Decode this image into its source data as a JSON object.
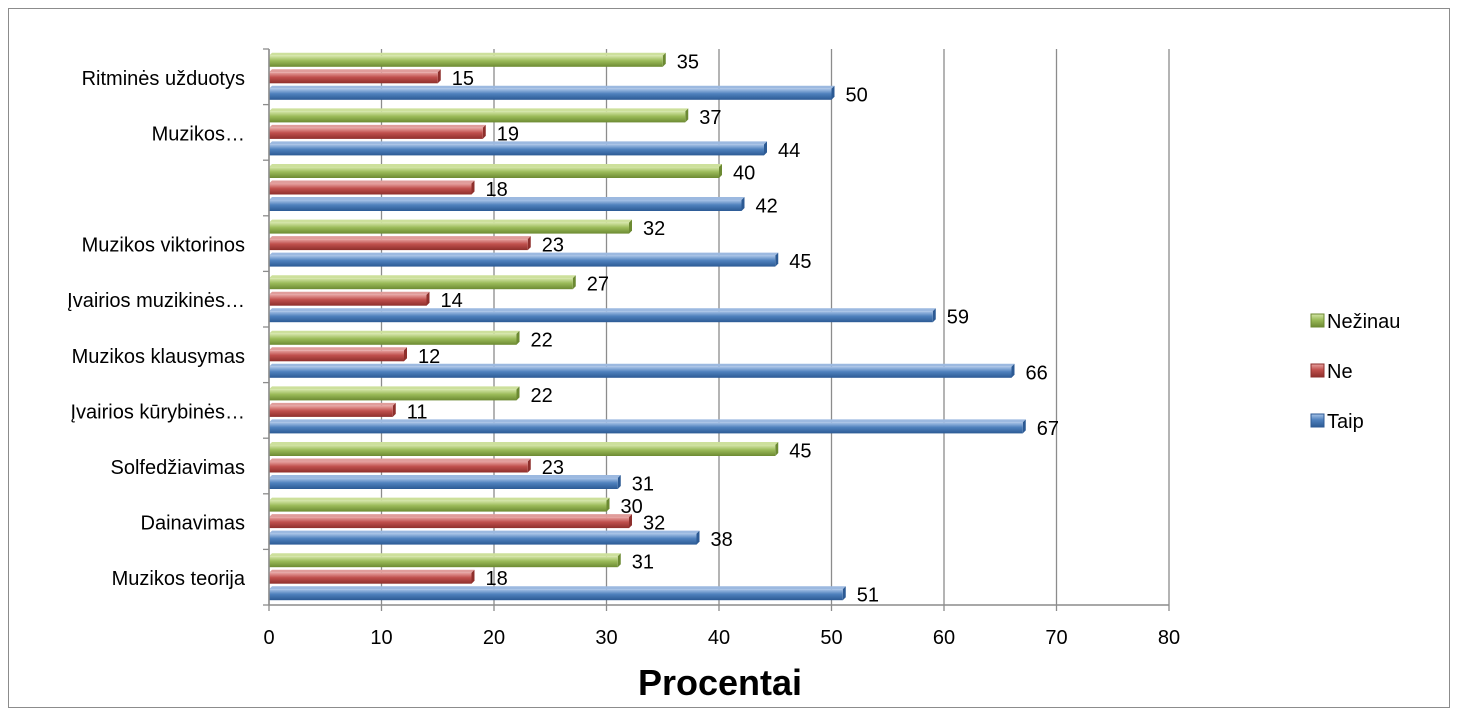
{
  "chart_data": {
    "type": "bar",
    "orientation": "horizontal",
    "categories": [
      "Muzikos teorija",
      "Dainavimas",
      "Solfedžiavimas",
      "Įvairios kūrybinės…",
      "Muzikos klausymas",
      "Įvairios muzikinės…",
      "Muzikos viktorinos",
      "",
      "Muzikos…",
      "Ritminės užduotys"
    ],
    "series": [
      {
        "name": "Taip",
        "color": "#4f81bd",
        "values": [
          51,
          38,
          31,
          67,
          66,
          59,
          45,
          42,
          44,
          50
        ]
      },
      {
        "name": "Ne",
        "color": "#c0504d",
        "values": [
          18,
          32,
          23,
          11,
          12,
          14,
          23,
          18,
          19,
          15
        ]
      },
      {
        "name": "Nežinau",
        "color": "#9bbb59",
        "values": [
          31,
          30,
          45,
          22,
          22,
          27,
          32,
          40,
          37,
          35
        ]
      }
    ],
    "xlim": [
      0,
      80
    ],
    "xticks": [
      0,
      10,
      20,
      30,
      40,
      50,
      60,
      70,
      80
    ],
    "xticks_labels": [
      "0",
      "10",
      "20",
      "30",
      "40",
      "50",
      "60",
      "70",
      "80"
    ],
    "xlabel": "Procentai",
    "ylabel": "",
    "title": "",
    "grid": "vertical",
    "legend": {
      "position": "right",
      "entries": [
        "Nežinau",
        "Ne",
        "Taip"
      ]
    }
  }
}
